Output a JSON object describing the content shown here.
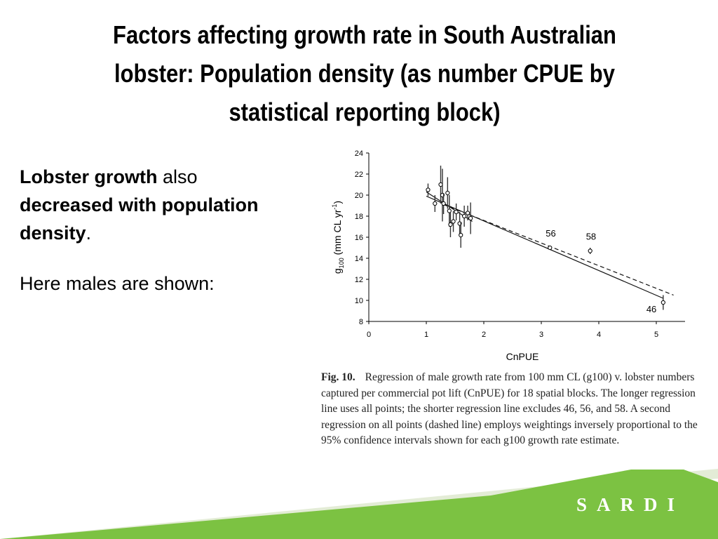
{
  "slide": {
    "title_lines": [
      "Factors affecting growth rate in South Australian",
      "lobster:  Population density (as number CPUE by",
      "statistical reporting block)"
    ],
    "body": {
      "p1_bold1": "Lobster growth",
      "p1_text1": " also ",
      "p1_bold2": "decreased with population density",
      "p1_text2": ".",
      "p2": "Here males are shown:"
    },
    "caption": {
      "fig_label": "Fig. 10.",
      "text": "Regression of male growth rate from 100 mm CL (g100) v. lobster numbers captured per commercial pot lift (CnPUE) for 18 spatial blocks. The longer regression line uses all points; the shorter regression line excludes 46, 56, and 58. A second regression on all points (dashed line) employs weightings inversely proportional to the 95% confidence intervals shown for each g100 growth rate estimate."
    },
    "brand": "SARDI",
    "colors": {
      "footer_green": "#7cc242",
      "footer_light": "#e3ecd6"
    }
  },
  "chart_data": {
    "type": "scatter",
    "xlabel": "CnPUE",
    "ylabel": "g100 (mm CL yr-1)",
    "xlim": [
      0,
      5.5
    ],
    "ylim": [
      8,
      24
    ],
    "xticks": [
      0,
      1,
      2,
      3,
      4,
      5
    ],
    "yticks": [
      8,
      10,
      12,
      14,
      16,
      18,
      20,
      22,
      24
    ],
    "points": [
      {
        "x": 1.03,
        "y": 20.5,
        "err": 0.6,
        "label": ""
      },
      {
        "x": 1.15,
        "y": 19.2,
        "err": 0.8,
        "label": ""
      },
      {
        "x": 1.25,
        "y": 21.0,
        "err": 1.8,
        "label": ""
      },
      {
        "x": 1.28,
        "y": 20.0,
        "err": 2.5,
        "label": ""
      },
      {
        "x": 1.3,
        "y": 19.2,
        "err": 1.0,
        "label": ""
      },
      {
        "x": 1.37,
        "y": 20.2,
        "err": 1.5,
        "label": ""
      },
      {
        "x": 1.4,
        "y": 18.5,
        "err": 1.5,
        "label": ""
      },
      {
        "x": 1.42,
        "y": 17.2,
        "err": 1.2,
        "label": ""
      },
      {
        "x": 1.47,
        "y": 17.5,
        "err": 1.0,
        "label": ""
      },
      {
        "x": 1.52,
        "y": 18.4,
        "err": 0.8,
        "label": ""
      },
      {
        "x": 1.58,
        "y": 17.3,
        "err": 1.1,
        "label": ""
      },
      {
        "x": 1.6,
        "y": 16.2,
        "err": 1.2,
        "label": ""
      },
      {
        "x": 1.66,
        "y": 18.0,
        "err": 1.0,
        "label": ""
      },
      {
        "x": 1.72,
        "y": 18.3,
        "err": 0.7,
        "label": ""
      },
      {
        "x": 1.77,
        "y": 17.8,
        "err": 1.5,
        "label": ""
      },
      {
        "x": 3.15,
        "y": 15.0,
        "err": 0.2,
        "label": "56"
      },
      {
        "x": 3.85,
        "y": 14.7,
        "err": 0.3,
        "label": "58"
      },
      {
        "x": 5.12,
        "y": 9.8,
        "err": 0.7,
        "label": "46"
      }
    ],
    "lines": [
      {
        "style": "solid",
        "x": [
          1.0,
          5.12
        ],
        "y": [
          19.9,
          10.2
        ]
      },
      {
        "style": "solid",
        "x": [
          1.0,
          1.8
        ],
        "y": [
          20.3,
          17.5
        ]
      },
      {
        "style": "dashed",
        "x": [
          1.3,
          5.3
        ],
        "y": [
          19.1,
          10.5
        ]
      }
    ]
  }
}
